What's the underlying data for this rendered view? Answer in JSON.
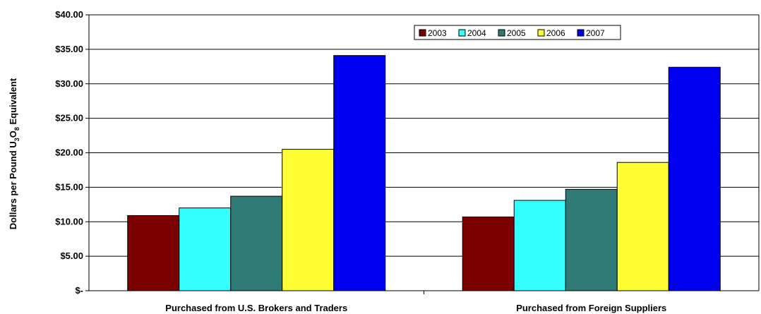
{
  "chart_data": {
    "type": "bar",
    "ylabel_parts": [
      "Dollars per Pound U",
      "3",
      "O",
      "8",
      " Equivalent"
    ],
    "ylim": [
      0,
      40
    ],
    "yticks": [
      0,
      5,
      10,
      15,
      20,
      25,
      30,
      35,
      40
    ],
    "ytick_labels": [
      "$-",
      "$5.00",
      "$10.00",
      "$15.00",
      "$20.00",
      "$25.00",
      "$30.00",
      "$35.00",
      "$40.00"
    ],
    "grid": true,
    "legend_position": "top-right",
    "categories": [
      "Purchased from U.S. Brokers and Traders",
      "Purchased from Foreign Suppliers"
    ],
    "series": [
      {
        "name": "2003",
        "color": "#7b0000",
        "values": [
          10.9,
          10.7
        ]
      },
      {
        "name": "2004",
        "color": "#33ffff",
        "values": [
          12.0,
          13.1
        ]
      },
      {
        "name": "2005",
        "color": "#2f7a74",
        "values": [
          13.7,
          14.7
        ]
      },
      {
        "name": "2006",
        "color": "#ffff33",
        "values": [
          20.5,
          18.6
        ]
      },
      {
        "name": "2007",
        "color": "#0000ee",
        "values": [
          34.1,
          32.4
        ]
      }
    ]
  }
}
